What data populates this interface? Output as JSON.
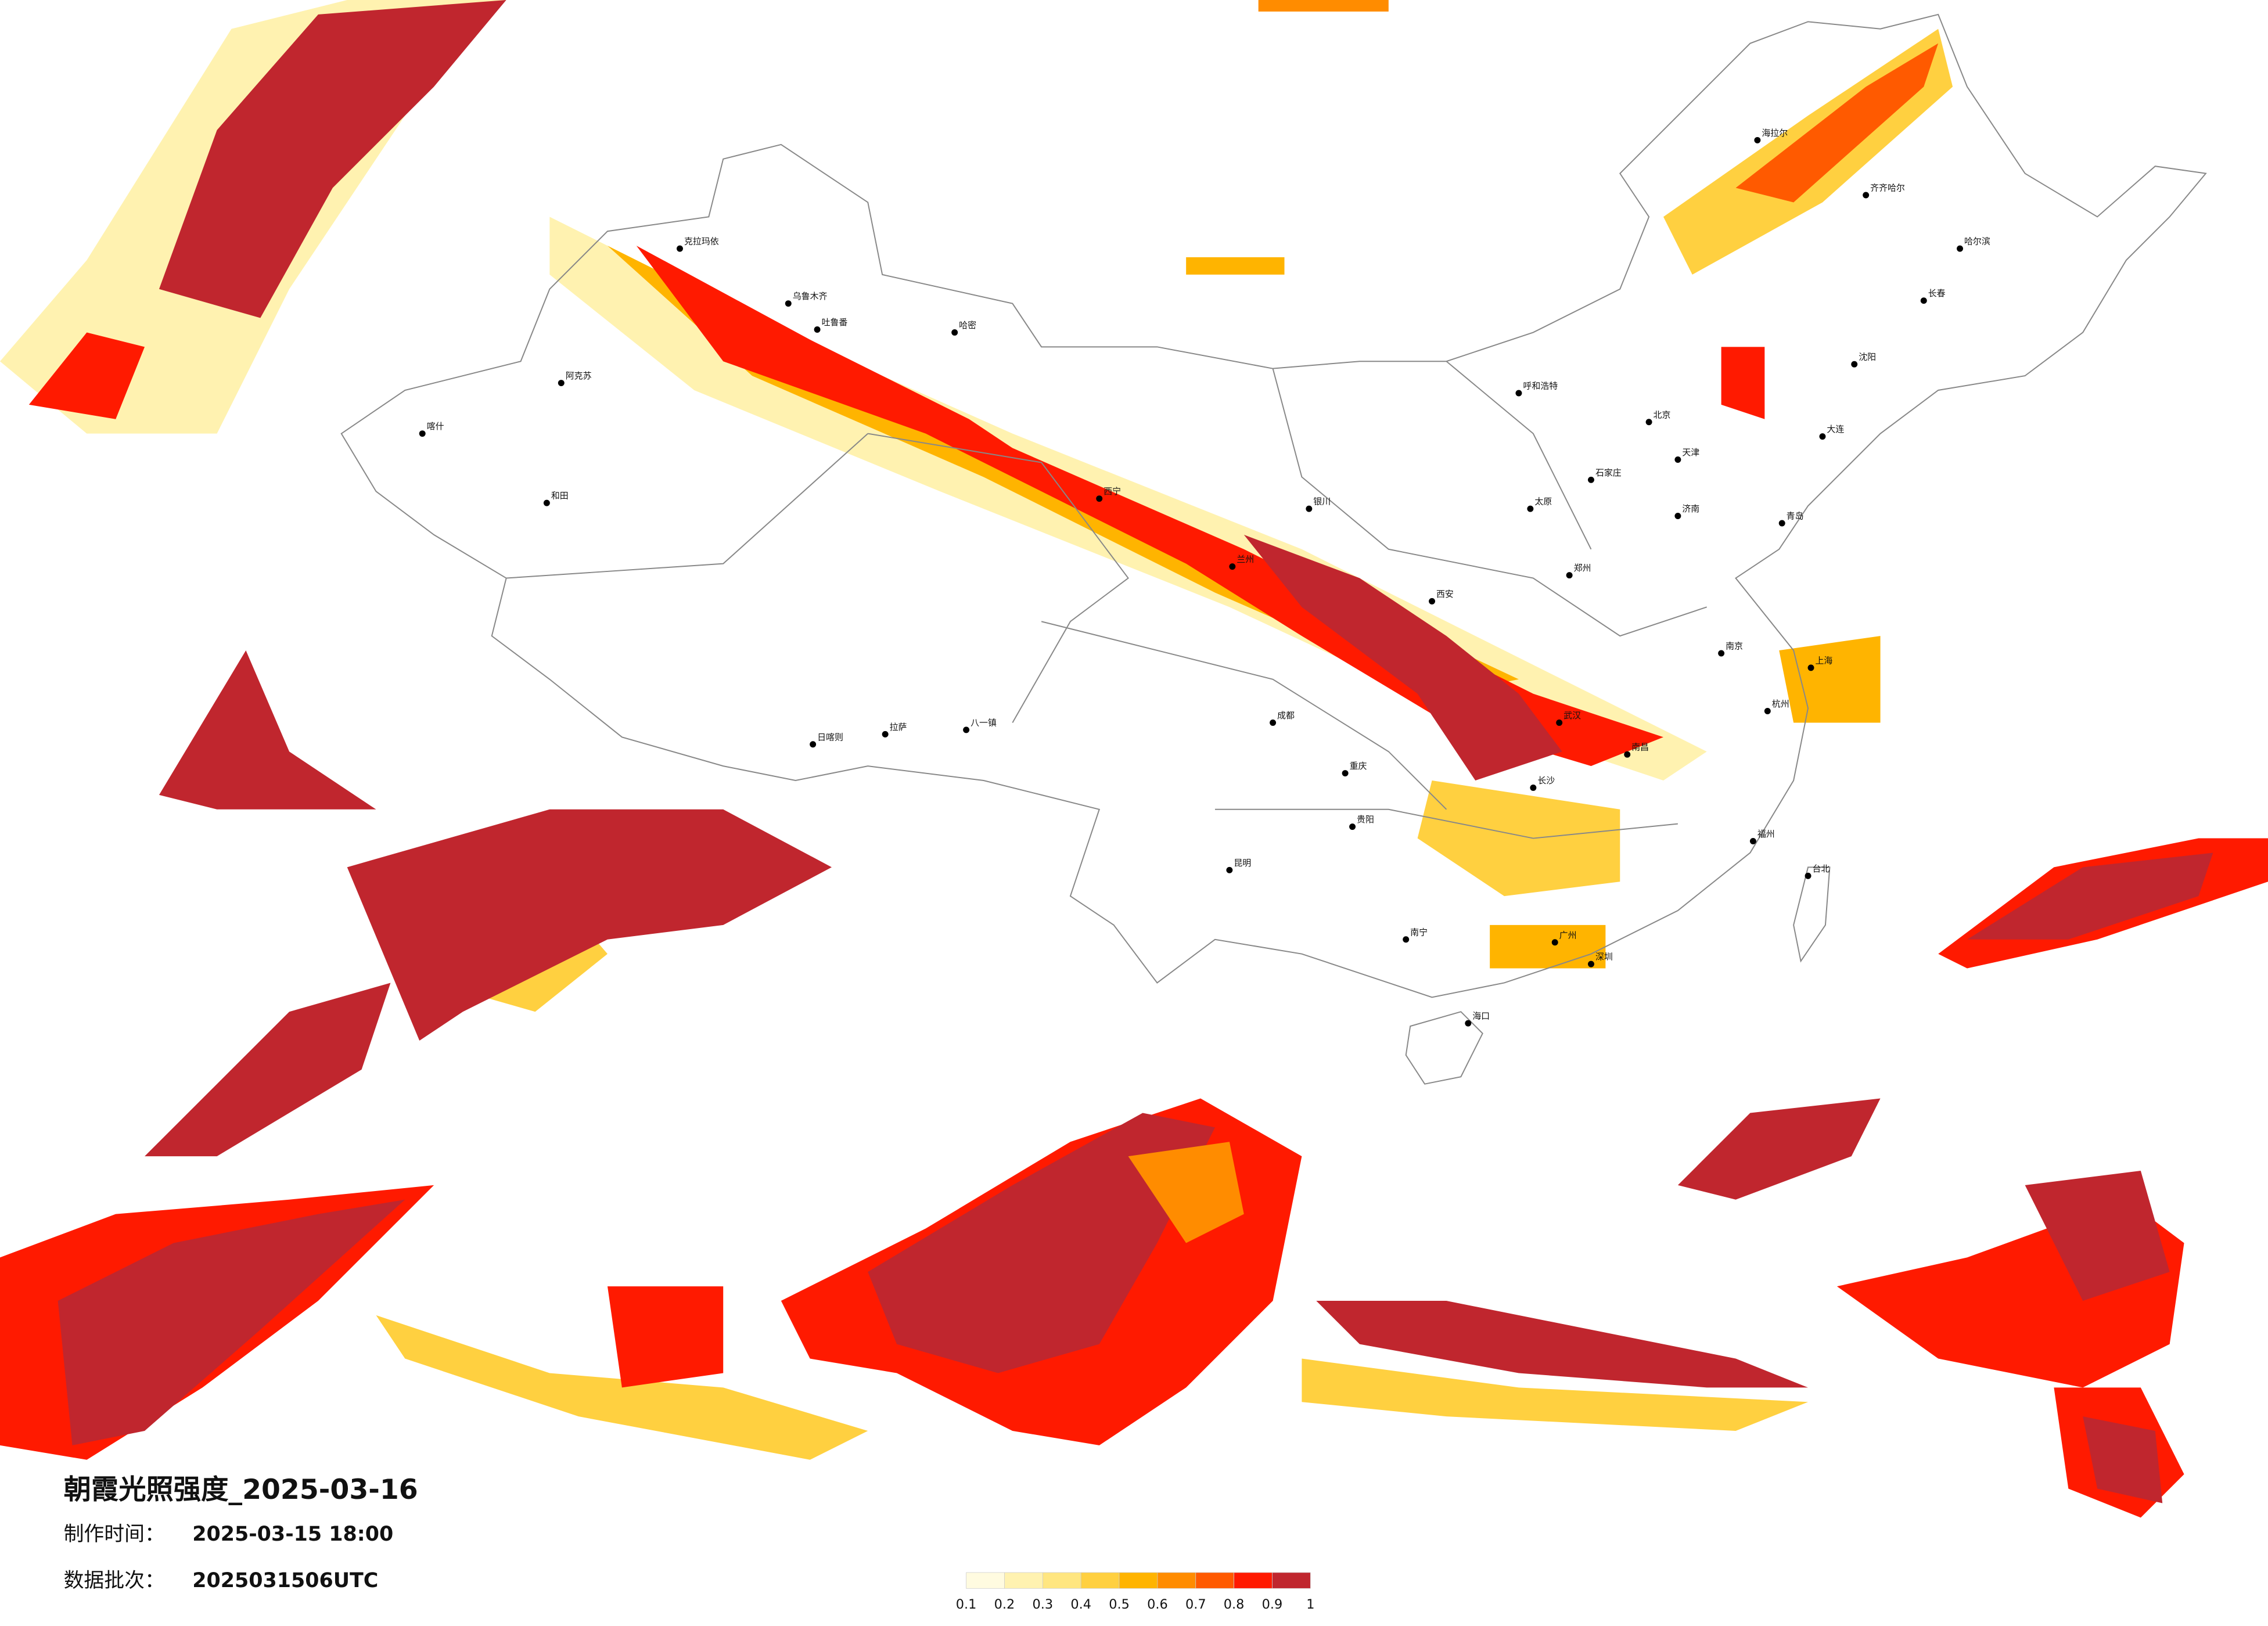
{
  "map": {
    "title": "朝霞光照强度_2025-03-16",
    "made_label": "制作时间：",
    "made_time": "2025-03-15 18:00",
    "batch_label": "数据批次：",
    "batch": "2025031506UTC",
    "legend": {
      "labels": [
        0.1,
        0.2,
        0.3,
        0.4,
        0.5,
        0.6,
        0.7,
        0.8,
        0.9,
        1
      ],
      "colors": [
        "#fffbe0",
        "#fff2b0",
        "#ffe680",
        "#ffd040",
        "#ffb400",
        "#ff8c00",
        "#ff5a00",
        "#ff1a00",
        "#c0262e"
      ]
    },
    "cities": [
      "克拉玛依",
      "乌鲁木齐",
      "吐鲁番",
      "哈密",
      "阿克苏",
      "喀什",
      "和田",
      "日喀则",
      "拉萨",
      "八一镇",
      "西宁",
      "兰州",
      "银川",
      "呼和浩特",
      "北京",
      "天津",
      "石家庄",
      "太原",
      "济南",
      "郑州",
      "西安",
      "成都",
      "重庆",
      "武汉",
      "长沙",
      "南昌",
      "杭州",
      "上海",
      "南京",
      "福州",
      "广州",
      "深圳",
      "南宁",
      "昆明",
      "贵阳",
      "海口",
      "台北",
      "长春",
      "哈尔滨",
      "沈阳",
      "大连",
      "青岛",
      "齐齐哈尔",
      "海拉尔"
    ]
  }
}
